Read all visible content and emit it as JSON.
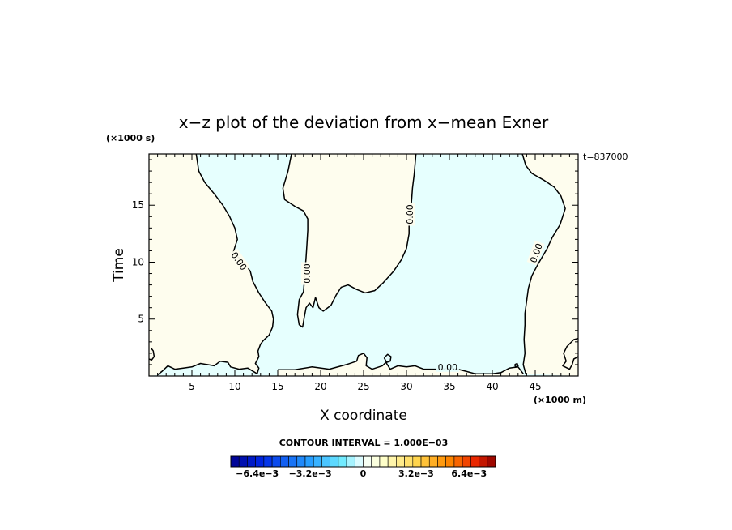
{
  "chart_data": {
    "type": "contour",
    "title": "x−z plot of the deviation from x−mean Exner",
    "xlabel": "X coordinate",
    "ylabel": "Time",
    "x_unit_label": "(×1000 m)",
    "y_unit_label": "(×1000 s)",
    "time_stamp": "t=837000",
    "xlim": [
      0,
      50
    ],
    "ylim": [
      0,
      19.5
    ],
    "x_ticks": [
      5,
      10,
      15,
      20,
      25,
      30,
      35,
      40,
      45
    ],
    "y_ticks": [
      5,
      10,
      15
    ],
    "contour_level_label": "0.00",
    "colorbar": {
      "title": "CONTOUR INTERVAL = 1.000E−03",
      "min": -0.008,
      "max": 0.008,
      "n_bins": 32,
      "tick_labels": [
        "−6.4e−3",
        "−3.2e−3",
        "0",
        "3.2e−3",
        "6.4e−3"
      ],
      "tick_values": [
        -0.0064,
        -0.0032,
        0,
        0.0032,
        0.0064
      ]
    },
    "colors": {
      "positive_fill": "#fefdee",
      "negative_fill": "#e6fffe"
    },
    "contours": [
      {
        "name": "zero-contour-left",
        "points": [
          [
            0.2,
            2.5
          ],
          [
            0.5,
            2.2
          ],
          [
            0.6,
            1.7
          ],
          [
            0.3,
            1.4
          ],
          [
            0,
            1.5
          ]
        ]
      },
      {
        "name": "zero-contour-main-left",
        "points": [
          [
            5.5,
            19.5
          ],
          [
            5.8,
            18
          ],
          [
            6.5,
            17
          ],
          [
            7.6,
            16
          ],
          [
            8.6,
            15
          ],
          [
            9.4,
            14
          ],
          [
            10,
            13
          ],
          [
            10.3,
            12
          ],
          [
            10,
            11.3
          ],
          [
            9.8,
            10.8
          ],
          [
            10.6,
            10.3
          ],
          [
            11.3,
            9.7
          ],
          [
            11.8,
            9.2
          ],
          [
            12.1,
            8.3
          ],
          [
            12.8,
            7.3
          ],
          [
            13.5,
            6.5
          ],
          [
            14,
            6
          ],
          [
            14.3,
            5.7
          ],
          [
            14.5,
            5
          ],
          [
            14.4,
            4.3
          ],
          [
            14,
            3.6
          ],
          [
            13.3,
            3.1
          ],
          [
            13,
            2.8
          ],
          [
            12.7,
            2.2
          ],
          [
            12.8,
            1.7
          ],
          [
            12.4,
            1.1
          ],
          [
            12.8,
            0.7
          ],
          [
            12.6,
            0.2
          ],
          [
            11.5,
            0.7
          ],
          [
            10.5,
            0.6
          ],
          [
            9.5,
            0.8
          ],
          [
            9.2,
            1.2
          ],
          [
            8.3,
            1.3
          ],
          [
            7.6,
            0.9
          ],
          [
            6.8,
            1.0
          ],
          [
            6,
            1.1
          ],
          [
            5,
            0.8
          ],
          [
            4,
            0.7
          ],
          [
            3,
            0.6
          ],
          [
            2.2,
            0.9
          ],
          [
            1.5,
            0.4
          ],
          [
            1,
            0.1
          ]
        ]
      },
      {
        "name": "zero-contour-middle",
        "points": [
          [
            16.6,
            19.5
          ],
          [
            16.2,
            18
          ],
          [
            15.6,
            16.5
          ],
          [
            15.8,
            15.5
          ],
          [
            17,
            14.9
          ],
          [
            18,
            14.5
          ],
          [
            18.5,
            13.8
          ],
          [
            18.5,
            12.8
          ],
          [
            18.4,
            11.5
          ],
          [
            18.3,
            10.4
          ],
          [
            18.2,
            9.4
          ],
          [
            18.1,
            8.4
          ],
          [
            18,
            7.4
          ],
          [
            17.5,
            6.7
          ],
          [
            17.4,
            6.0
          ],
          [
            17.3,
            5.4
          ],
          [
            17.5,
            4.5
          ],
          [
            17.9,
            4.3
          ],
          [
            18.1,
            5.2
          ],
          [
            18.3,
            6.0
          ],
          [
            18.7,
            6.4
          ],
          [
            19.1,
            6.0
          ],
          [
            19.4,
            6.9
          ],
          [
            19.8,
            6.0
          ],
          [
            20.3,
            5.7
          ],
          [
            21.2,
            6.2
          ],
          [
            21.8,
            7.1
          ],
          [
            22.4,
            7.8
          ],
          [
            23.2,
            8.0
          ],
          [
            24.2,
            7.6
          ],
          [
            25.2,
            7.3
          ],
          [
            26.3,
            7.5
          ],
          [
            27.3,
            8.2
          ],
          [
            28.5,
            9.2
          ],
          [
            29.4,
            10.2
          ],
          [
            30,
            11.2
          ],
          [
            30.3,
            12.5
          ],
          [
            30.3,
            13.5
          ],
          [
            30.5,
            14.5
          ],
          [
            30.6,
            15.5
          ],
          [
            30.7,
            16.5
          ],
          [
            30.9,
            17.7
          ],
          [
            31.1,
            19.5
          ]
        ]
      },
      {
        "name": "zero-contour-right",
        "points": [
          [
            43.5,
            19.5
          ],
          [
            43.9,
            18.5
          ],
          [
            44.6,
            17.8
          ],
          [
            46,
            17.2
          ],
          [
            47.2,
            16.6
          ],
          [
            48,
            15.8
          ],
          [
            48.5,
            14.7
          ],
          [
            47.9,
            13.3
          ],
          [
            47,
            12.2
          ],
          [
            46.4,
            11.2
          ],
          [
            45.3,
            9.8
          ],
          [
            44.6,
            8.8
          ],
          [
            44.2,
            7.7
          ],
          [
            44,
            6.6
          ],
          [
            43.8,
            5.5
          ],
          [
            43.8,
            4.5
          ],
          [
            43.7,
            3.2
          ],
          [
            43.8,
            2.0
          ],
          [
            43.6,
            1.0
          ],
          [
            43.9,
            0.2
          ]
        ]
      },
      {
        "name": "zero-contour-bottom-right",
        "points": [
          [
            50,
            3.3
          ],
          [
            49.5,
            3.2
          ],
          [
            48.7,
            2.6
          ],
          [
            48.3,
            2.0
          ],
          [
            48.6,
            1.3
          ],
          [
            48.2,
            0.9
          ],
          [
            49,
            0.6
          ],
          [
            49.3,
            1.0
          ],
          [
            49.5,
            1.5
          ],
          [
            50,
            1.7
          ]
        ]
      },
      {
        "name": "zero-contour-bottom-band",
        "points": [
          [
            15,
            0.55
          ],
          [
            17,
            0.55
          ],
          [
            19,
            0.8
          ],
          [
            21,
            0.6
          ],
          [
            23,
            1.0
          ],
          [
            24.2,
            1.3
          ],
          [
            24.4,
            1.8
          ],
          [
            25,
            2.0
          ],
          [
            25.4,
            1.6
          ],
          [
            25.3,
            0.9
          ],
          [
            26,
            0.6
          ],
          [
            27.2,
            0.9
          ],
          [
            27.6,
            1.2
          ],
          [
            28.1,
            0.6
          ],
          [
            29,
            0.9
          ],
          [
            30,
            0.8
          ],
          [
            31,
            0.9
          ],
          [
            32,
            0.6
          ],
          [
            33,
            0.6
          ],
          [
            34,
            0.6
          ],
          [
            35,
            0.7
          ],
          [
            36,
            0.6
          ],
          [
            37,
            0.4
          ],
          [
            38,
            0.2
          ],
          [
            39,
            0.2
          ],
          [
            40,
            0.2
          ],
          [
            41,
            0.3
          ],
          [
            42,
            0.7
          ],
          [
            43,
            0.8
          ],
          [
            43.6,
            0.2
          ]
        ]
      },
      {
        "name": "zero-contour-small-loop",
        "points": [
          [
            27.4,
            1.6
          ],
          [
            27.8,
            1.9
          ],
          [
            28.2,
            1.7
          ],
          [
            28.1,
            1.3
          ],
          [
            27.7,
            1.2
          ],
          [
            27.4,
            1.6
          ]
        ]
      },
      {
        "name": "zero-contour-tiny-loop",
        "points": [
          [
            42.6,
            1.0
          ],
          [
            42.9,
            1.1
          ],
          [
            43.0,
            0.9
          ],
          [
            42.7,
            0.8
          ],
          [
            42.6,
            1.0
          ]
        ]
      }
    ],
    "contour_labels": [
      {
        "text": "0.00",
        "x": 10.5,
        "y": 10.1,
        "angle": 55
      },
      {
        "text": "0.00",
        "x": 18.4,
        "y": 9.0,
        "angle": -90
      },
      {
        "text": "0.00",
        "x": 30.4,
        "y": 14.2,
        "angle": -90
      },
      {
        "text": "0.00",
        "x": 45.1,
        "y": 10.8,
        "angle": -70
      },
      {
        "text": "0.00",
        "x": 34.8,
        "y": 0.8,
        "angle": 0
      }
    ]
  }
}
